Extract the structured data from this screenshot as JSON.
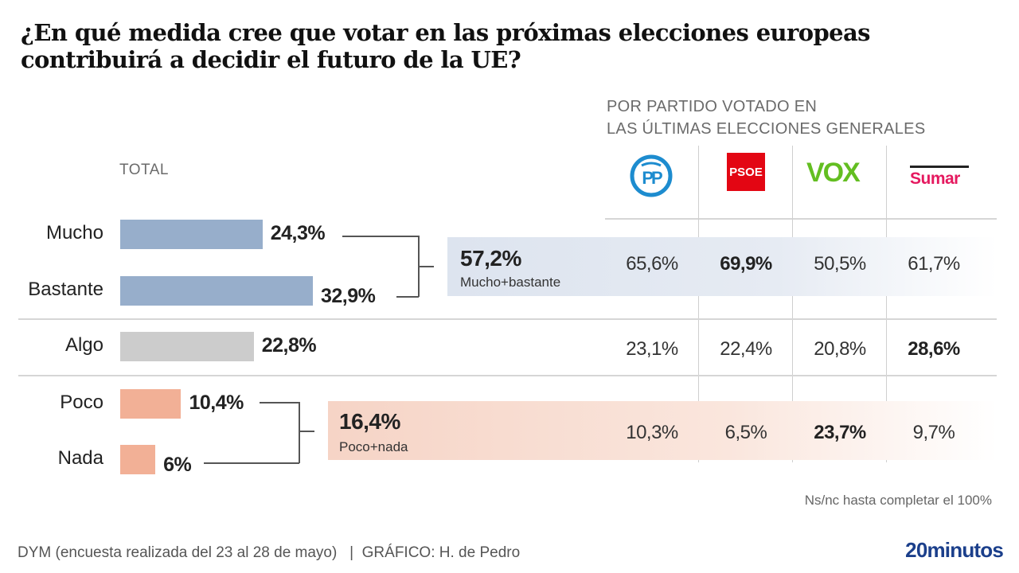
{
  "chart_data": {
    "type": "bar",
    "title": "¿En qué medida cree que votar en las próximas elecciones europeas contribuirá a decidir el futuro de la UE?",
    "subtitle_total": "TOTAL",
    "subtitle_parties": "POR PARTIDO VOTADO EN LAS ÚLTIMAS ELECCIONES GENERALES",
    "orientation": "horizontal",
    "categories": [
      "Mucho",
      "Bastante",
      "Algo",
      "Poco",
      "Nada"
    ],
    "values": [
      24.3,
      32.9,
      22.8,
      10.4,
      6
    ],
    "value_labels": [
      "24,3%",
      "32,9%",
      "22,8%",
      "10,4%",
      "6%"
    ],
    "bar_colors": [
      "#97aecb",
      "#97aecb",
      "#cccccc",
      "#f2b096",
      "#f2b096"
    ],
    "xlim": [
      0,
      60
    ],
    "groups": [
      {
        "name": "Mucho+bastante",
        "members": [
          "Mucho",
          "Bastante"
        ],
        "value": 57.2,
        "label": "57,2%"
      },
      {
        "name": "Algo",
        "members": [
          "Algo"
        ],
        "value": 22.8,
        "label": "22,8%"
      },
      {
        "name": "Poco+nada",
        "members": [
          "Poco",
          "Nada"
        ],
        "value": 16.4,
        "label": "16,4%"
      }
    ],
    "parties": [
      {
        "name": "PP",
        "color": "#1d8ccf"
      },
      {
        "name": "PSOE",
        "color": "#e30613"
      },
      {
        "name": "VOX",
        "color": "#63be21"
      },
      {
        "name": "Sumar",
        "color": "#e5195f"
      }
    ],
    "party_table": {
      "rows": [
        "Mucho+bastante",
        "Algo",
        "Poco+nada"
      ],
      "series": [
        {
          "name": "PP",
          "values": [
            65.6,
            23.1,
            10.3
          ],
          "labels": [
            "65,6%",
            "23,1%",
            "10,3%"
          ]
        },
        {
          "name": "PSOE",
          "values": [
            69.9,
            22.4,
            6.5
          ],
          "labels": [
            "69,9%",
            "22,4%",
            "6,5%"
          ]
        },
        {
          "name": "VOX",
          "values": [
            50.5,
            20.8,
            23.7
          ],
          "labels": [
            "50,5%",
            "20,8%",
            "23,7%"
          ]
        },
        {
          "name": "Sumar",
          "values": [
            61.7,
            28.6,
            9.7
          ],
          "labels": [
            "61,7%",
            "28,6%",
            "9,7%"
          ]
        }
      ],
      "highlighted": [
        [
          0,
          1
        ],
        [
          1,
          3
        ],
        [
          2,
          2
        ]
      ]
    },
    "note": "Ns/nc hasta completar el 100%"
  },
  "header": {
    "title_line1": "¿En qué medida cree que votar en las próximas elecciones europeas",
    "title_line2": "contribuirá a decidir el futuro de la UE?",
    "parties_heading_line1": "POR PARTIDO VOTADO EN",
    "parties_heading_line2": "LAS ÚLTIMAS ELECCIONES GENERALES",
    "total_heading": "TOTAL"
  },
  "logos": {
    "pp": "PP",
    "psoe": "PSOE",
    "vox": "VOX",
    "sumar": "Sumar"
  },
  "footer": {
    "note": "Ns/nc hasta completar el 100%",
    "source": "DYM (encuesta realizada del 23 al 28 de mayo)   |  GRÁFICO: H. de Pedro",
    "brand": "20minutos"
  }
}
